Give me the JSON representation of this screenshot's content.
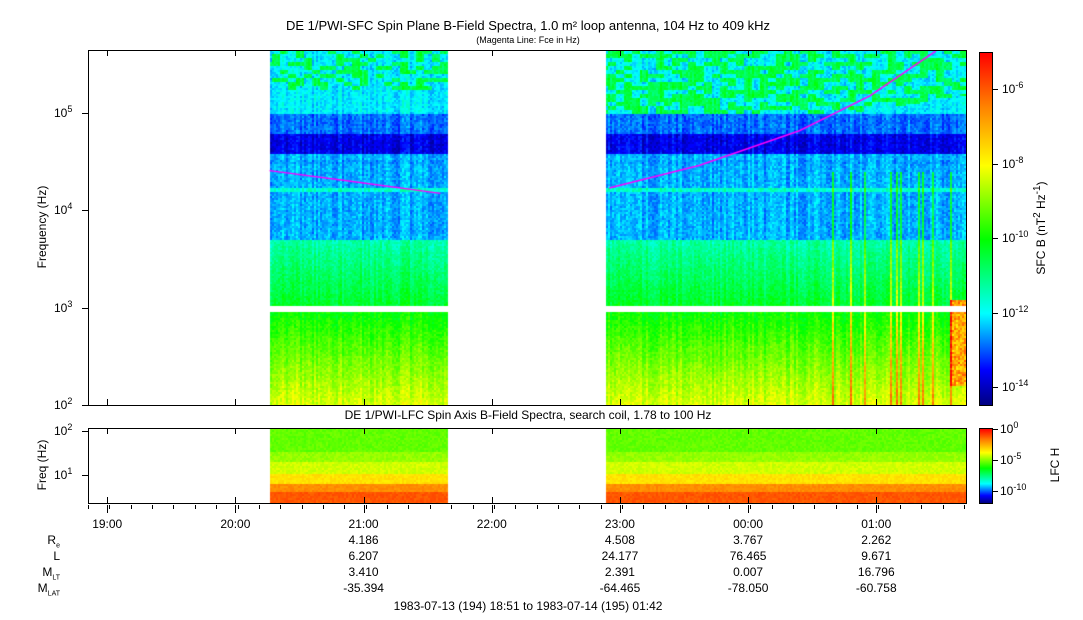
{
  "chart_data": [
    {
      "type": "heatmap",
      "title": "DE 1/PWI-SFC  Spin Plane B-Field Spectra, 1.0 m² loop antenna, 104 Hz to 409 kHz",
      "subtitle": "(Magenta Line: Fce in Hz)",
      "ylabel": "Frequency (Hz)",
      "yscale": "log",
      "ylim": [
        100,
        447000
      ],
      "yticks": [
        {
          "base": "10",
          "exp": "2",
          "value": 100
        },
        {
          "base": "10",
          "exp": "3",
          "value": 1000
        },
        {
          "base": "10",
          "exp": "4",
          "value": 10000
        },
        {
          "base": "10",
          "exp": "5",
          "value": 100000
        }
      ],
      "colorbar": {
        "label": "SFC B (nT",
        "label_exp": "2",
        "label_mid": " Hz",
        "label_exp2": "-1",
        "label_end": ")",
        "log_range": [
          -14.5,
          -5
        ],
        "ticks": [
          {
            "base": "10",
            "exp": "-6",
            "log": -6
          },
          {
            "base": "10",
            "exp": "-8",
            "log": -8
          },
          {
            "base": "10",
            "exp": "-10",
            "log": -10
          },
          {
            "base": "10",
            "exp": "-12",
            "log": -12
          },
          {
            "base": "10",
            "exp": "-14",
            "log": -14
          }
        ]
      },
      "data_intervals": [
        [
          "20:16",
          "21:39"
        ],
        [
          "22:53",
          "01:42"
        ]
      ],
      "data_gap_frequency_hz": 1000,
      "fce_line": {
        "color": "#ff00ff",
        "segments": [
          [
            [
              "20:16",
              25700
            ],
            [
              "20:54",
              20000
            ],
            [
              "21:36",
              15000
            ]
          ],
          [
            [
              "22:55",
              17000
            ],
            [
              "23:37",
              29000
            ],
            [
              "00:24",
              66000
            ],
            [
              "00:57",
              151000
            ],
            [
              "01:28",
              437000
            ]
          ]
        ]
      }
    },
    {
      "type": "heatmap",
      "title": "DE 1/PWI-LFC  Spin Axis B-Field Spectra, search coil, 1.78 to 100 Hz",
      "ylabel": "Freq (Hz)",
      "yscale": "log",
      "ylim": [
        2.2,
        120
      ],
      "yticks": [
        {
          "base": "10",
          "exp": "1",
          "value": 10
        },
        {
          "base": "10",
          "exp": "2",
          "value": 100
        }
      ],
      "colorbar": {
        "label": "LFC H",
        "log_range": [
          -12,
          0
        ],
        "ticks": [
          {
            "base": "10",
            "exp": "0",
            "log": 0
          },
          {
            "base": "10",
            "exp": "-5",
            "log": -5
          },
          {
            "base": "10",
            "exp": "-10",
            "log": -10
          }
        ]
      },
      "data_intervals": [
        [
          "20:16",
          "21:39"
        ],
        [
          "22:53",
          "01:42"
        ]
      ]
    }
  ],
  "xaxis": {
    "start": "18:51",
    "end": "01:42",
    "ticks": [
      "19:00",
      "20:00",
      "21:00",
      "22:00",
      "23:00",
      "00:00",
      "01:00"
    ]
  },
  "ephemeris": {
    "rows": [
      {
        "label": "R",
        "sub": "e",
        "values": [
          "",
          "",
          "4.186",
          "",
          "4.508",
          "3.767",
          "2.262"
        ]
      },
      {
        "label": "L",
        "sub": "",
        "values": [
          "",
          "",
          "6.207",
          "",
          "24.177",
          "76.465",
          "9.671"
        ]
      },
      {
        "label": "M",
        "sub": "LT",
        "values": [
          "",
          "",
          "3.410",
          "",
          "2.391",
          "0.007",
          "16.796"
        ]
      },
      {
        "label": "M",
        "sub": "LAT",
        "values": [
          "",
          "",
          "-35.394",
          "",
          "-64.465",
          "-78.050",
          "-60.758"
        ]
      }
    ],
    "range": "1983-07-13 (194) 18:51 to 1983-07-14 (195) 01:42"
  }
}
